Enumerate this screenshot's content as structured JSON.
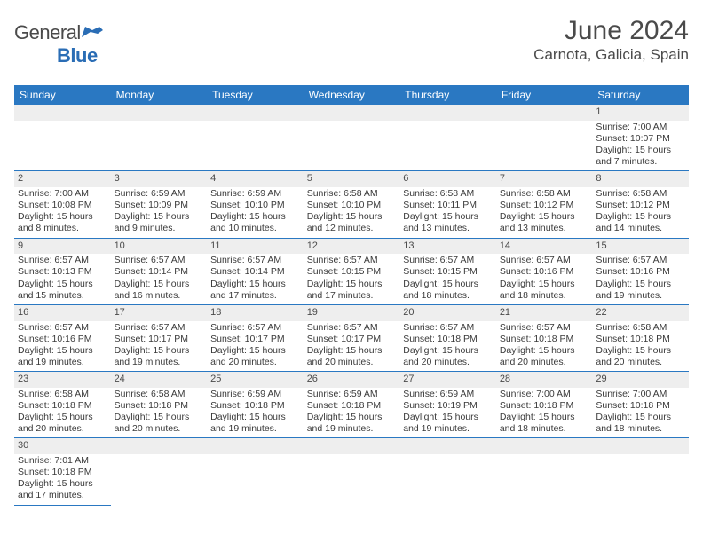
{
  "logo": {
    "text1": "General",
    "text2": "Blue"
  },
  "title": "June 2024",
  "location": "Carnota, Galicia, Spain",
  "day_headers": [
    "Sunday",
    "Monday",
    "Tuesday",
    "Wednesday",
    "Thursday",
    "Friday",
    "Saturday"
  ],
  "colors": {
    "header_bg": "#2a78c2",
    "header_fg": "#ffffff",
    "daynum_bg": "#eeeeee",
    "text": "#4a4a4a",
    "rule": "#2a78c2"
  },
  "weeks": [
    [
      null,
      null,
      null,
      null,
      null,
      null,
      {
        "n": "1",
        "sunrise": "Sunrise: 7:00 AM",
        "sunset": "Sunset: 10:07 PM",
        "daylight": "Daylight: 15 hours and 7 minutes."
      }
    ],
    [
      {
        "n": "2",
        "sunrise": "Sunrise: 7:00 AM",
        "sunset": "Sunset: 10:08 PM",
        "daylight": "Daylight: 15 hours and 8 minutes."
      },
      {
        "n": "3",
        "sunrise": "Sunrise: 6:59 AM",
        "sunset": "Sunset: 10:09 PM",
        "daylight": "Daylight: 15 hours and 9 minutes."
      },
      {
        "n": "4",
        "sunrise": "Sunrise: 6:59 AM",
        "sunset": "Sunset: 10:10 PM",
        "daylight": "Daylight: 15 hours and 10 minutes."
      },
      {
        "n": "5",
        "sunrise": "Sunrise: 6:58 AM",
        "sunset": "Sunset: 10:10 PM",
        "daylight": "Daylight: 15 hours and 12 minutes."
      },
      {
        "n": "6",
        "sunrise": "Sunrise: 6:58 AM",
        "sunset": "Sunset: 10:11 PM",
        "daylight": "Daylight: 15 hours and 13 minutes."
      },
      {
        "n": "7",
        "sunrise": "Sunrise: 6:58 AM",
        "sunset": "Sunset: 10:12 PM",
        "daylight": "Daylight: 15 hours and 13 minutes."
      },
      {
        "n": "8",
        "sunrise": "Sunrise: 6:58 AM",
        "sunset": "Sunset: 10:12 PM",
        "daylight": "Daylight: 15 hours and 14 minutes."
      }
    ],
    [
      {
        "n": "9",
        "sunrise": "Sunrise: 6:57 AM",
        "sunset": "Sunset: 10:13 PM",
        "daylight": "Daylight: 15 hours and 15 minutes."
      },
      {
        "n": "10",
        "sunrise": "Sunrise: 6:57 AM",
        "sunset": "Sunset: 10:14 PM",
        "daylight": "Daylight: 15 hours and 16 minutes."
      },
      {
        "n": "11",
        "sunrise": "Sunrise: 6:57 AM",
        "sunset": "Sunset: 10:14 PM",
        "daylight": "Daylight: 15 hours and 17 minutes."
      },
      {
        "n": "12",
        "sunrise": "Sunrise: 6:57 AM",
        "sunset": "Sunset: 10:15 PM",
        "daylight": "Daylight: 15 hours and 17 minutes."
      },
      {
        "n": "13",
        "sunrise": "Sunrise: 6:57 AM",
        "sunset": "Sunset: 10:15 PM",
        "daylight": "Daylight: 15 hours and 18 minutes."
      },
      {
        "n": "14",
        "sunrise": "Sunrise: 6:57 AM",
        "sunset": "Sunset: 10:16 PM",
        "daylight": "Daylight: 15 hours and 18 minutes."
      },
      {
        "n": "15",
        "sunrise": "Sunrise: 6:57 AM",
        "sunset": "Sunset: 10:16 PM",
        "daylight": "Daylight: 15 hours and 19 minutes."
      }
    ],
    [
      {
        "n": "16",
        "sunrise": "Sunrise: 6:57 AM",
        "sunset": "Sunset: 10:16 PM",
        "daylight": "Daylight: 15 hours and 19 minutes."
      },
      {
        "n": "17",
        "sunrise": "Sunrise: 6:57 AM",
        "sunset": "Sunset: 10:17 PM",
        "daylight": "Daylight: 15 hours and 19 minutes."
      },
      {
        "n": "18",
        "sunrise": "Sunrise: 6:57 AM",
        "sunset": "Sunset: 10:17 PM",
        "daylight": "Daylight: 15 hours and 20 minutes."
      },
      {
        "n": "19",
        "sunrise": "Sunrise: 6:57 AM",
        "sunset": "Sunset: 10:17 PM",
        "daylight": "Daylight: 15 hours and 20 minutes."
      },
      {
        "n": "20",
        "sunrise": "Sunrise: 6:57 AM",
        "sunset": "Sunset: 10:18 PM",
        "daylight": "Daylight: 15 hours and 20 minutes."
      },
      {
        "n": "21",
        "sunrise": "Sunrise: 6:57 AM",
        "sunset": "Sunset: 10:18 PM",
        "daylight": "Daylight: 15 hours and 20 minutes."
      },
      {
        "n": "22",
        "sunrise": "Sunrise: 6:58 AM",
        "sunset": "Sunset: 10:18 PM",
        "daylight": "Daylight: 15 hours and 20 minutes."
      }
    ],
    [
      {
        "n": "23",
        "sunrise": "Sunrise: 6:58 AM",
        "sunset": "Sunset: 10:18 PM",
        "daylight": "Daylight: 15 hours and 20 minutes."
      },
      {
        "n": "24",
        "sunrise": "Sunrise: 6:58 AM",
        "sunset": "Sunset: 10:18 PM",
        "daylight": "Daylight: 15 hours and 20 minutes."
      },
      {
        "n": "25",
        "sunrise": "Sunrise: 6:59 AM",
        "sunset": "Sunset: 10:18 PM",
        "daylight": "Daylight: 15 hours and 19 minutes."
      },
      {
        "n": "26",
        "sunrise": "Sunrise: 6:59 AM",
        "sunset": "Sunset: 10:18 PM",
        "daylight": "Daylight: 15 hours and 19 minutes."
      },
      {
        "n": "27",
        "sunrise": "Sunrise: 6:59 AM",
        "sunset": "Sunset: 10:19 PM",
        "daylight": "Daylight: 15 hours and 19 minutes."
      },
      {
        "n": "28",
        "sunrise": "Sunrise: 7:00 AM",
        "sunset": "Sunset: 10:18 PM",
        "daylight": "Daylight: 15 hours and 18 minutes."
      },
      {
        "n": "29",
        "sunrise": "Sunrise: 7:00 AM",
        "sunset": "Sunset: 10:18 PM",
        "daylight": "Daylight: 15 hours and 18 minutes."
      }
    ],
    [
      {
        "n": "30",
        "sunrise": "Sunrise: 7:01 AM",
        "sunset": "Sunset: 10:18 PM",
        "daylight": "Daylight: 15 hours and 17 minutes."
      },
      null,
      null,
      null,
      null,
      null,
      null
    ]
  ]
}
